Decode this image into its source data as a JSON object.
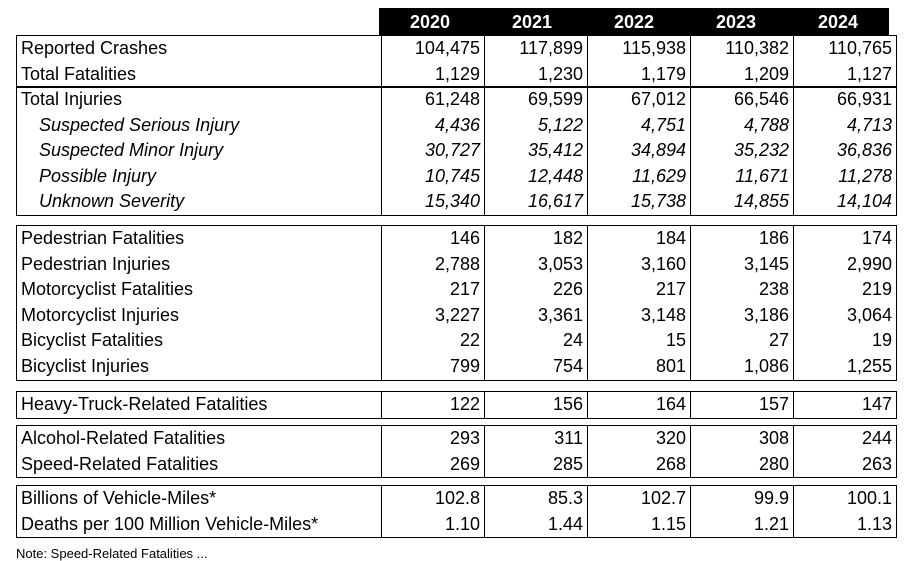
{
  "years": [
    "2020",
    "2021",
    "2022",
    "2023",
    "2024"
  ],
  "blocks": [
    {
      "rows": [
        {
          "label": "Reported Crashes",
          "italic": false,
          "values": [
            "104,475",
            "117,899",
            "115,938",
            "110,382",
            "110,765"
          ]
        },
        {
          "label": "Total Fatalities",
          "italic": false,
          "values": [
            "1,129",
            "1,230",
            "1,179",
            "1,209",
            "1,127"
          ]
        }
      ]
    },
    {
      "rows": [
        {
          "label": "Total Injuries",
          "italic": false,
          "values": [
            "61,248",
            "69,599",
            "67,012",
            "66,546",
            "66,931"
          ]
        },
        {
          "label": "Suspected Serious Injury",
          "italic": true,
          "values": [
            "4,436",
            "5,122",
            "4,751",
            "4,788",
            "4,713"
          ]
        },
        {
          "label": "Suspected Minor Injury",
          "italic": true,
          "values": [
            "30,727",
            "35,412",
            "34,894",
            "35,232",
            "36,836"
          ]
        },
        {
          "label": "Possible Injury",
          "italic": true,
          "values": [
            "10,745",
            "12,448",
            "11,629",
            "11,671",
            "11,278"
          ]
        },
        {
          "label": "Unknown Severity",
          "italic": true,
          "values": [
            "15,340",
            "16,617",
            "15,738",
            "14,855",
            "14,104"
          ]
        }
      ]
    },
    {
      "rows": [
        {
          "label": "Pedestrian Fatalities",
          "italic": false,
          "values": [
            "146",
            "182",
            "184",
            "186",
            "174"
          ]
        },
        {
          "label": "Pedestrian Injuries",
          "italic": false,
          "values": [
            "2,788",
            "3,053",
            "3,160",
            "3,145",
            "2,990"
          ]
        },
        {
          "label": "Motorcyclist Fatalities",
          "italic": false,
          "values": [
            "217",
            "226",
            "217",
            "238",
            "219"
          ]
        },
        {
          "label": "Motorcyclist Injuries",
          "italic": false,
          "values": [
            "3,227",
            "3,361",
            "3,148",
            "3,186",
            "3,064"
          ]
        },
        {
          "label": "Bicyclist Fatalities",
          "italic": false,
          "values": [
            "22",
            "24",
            "15",
            "27",
            "19"
          ]
        },
        {
          "label": "Bicyclist Injuries",
          "italic": false,
          "values": [
            "799",
            "754",
            "801",
            "1,086",
            "1,255"
          ]
        }
      ]
    },
    {
      "rows": [
        {
          "label": "Heavy-Truck-Related Fatalities",
          "italic": false,
          "values": [
            "122",
            "156",
            "164",
            "157",
            "147"
          ]
        }
      ]
    },
    {
      "rows": [
        {
          "label": "Alcohol-Related Fatalities",
          "italic": false,
          "values": [
            "293",
            "311",
            "320",
            "308",
            "244"
          ]
        },
        {
          "label": "Speed-Related Fatalities",
          "italic": false,
          "values": [
            "269",
            "285",
            "268",
            "280",
            "263"
          ]
        }
      ]
    },
    {
      "rows": [
        {
          "label": "Billions of Vehicle-Miles*",
          "italic": false,
          "values": [
            "102.8",
            "85.3",
            "102.7",
            "99.9",
            "100.1"
          ]
        },
        {
          "label": "Deaths per 100 Million Vehicle-Miles*",
          "italic": false,
          "values": [
            "1.10",
            "1.44",
            "1.15",
            "1.21",
            "1.13"
          ]
        }
      ]
    }
  ],
  "footer": "Note: Speed-Related Fatalities ..."
}
